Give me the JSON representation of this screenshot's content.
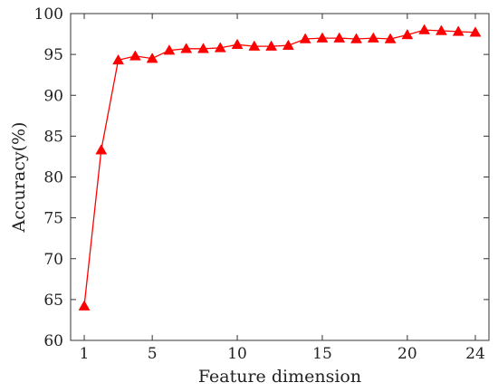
{
  "chart_data": {
    "type": "line",
    "title": "",
    "xlabel": "Feature dimension",
    "ylabel": "Accuracy(%)",
    "xlim": [
      0.2,
      24.8
    ],
    "ylim": [
      60,
      100
    ],
    "xticks": [
      1,
      5,
      10,
      15,
      20,
      24
    ],
    "yticks": [
      60,
      65,
      70,
      75,
      80,
      85,
      90,
      95,
      100
    ],
    "grid": false,
    "legend": "none",
    "series": [
      {
        "color": "#ff0000",
        "marker": "triangle",
        "x": [
          1,
          2,
          3,
          4,
          5,
          6,
          7,
          8,
          9,
          10,
          11,
          12,
          13,
          14,
          15,
          16,
          17,
          18,
          19,
          20,
          21,
          22,
          23,
          24
        ],
        "y": [
          64.2,
          83.3,
          94.3,
          94.8,
          94.5,
          95.5,
          95.7,
          95.7,
          95.8,
          96.2,
          96.0,
          96.0,
          96.1,
          96.9,
          97.0,
          97.0,
          96.9,
          97.0,
          96.9,
          97.4,
          98.0,
          97.9,
          97.8,
          97.7
        ]
      }
    ]
  }
}
